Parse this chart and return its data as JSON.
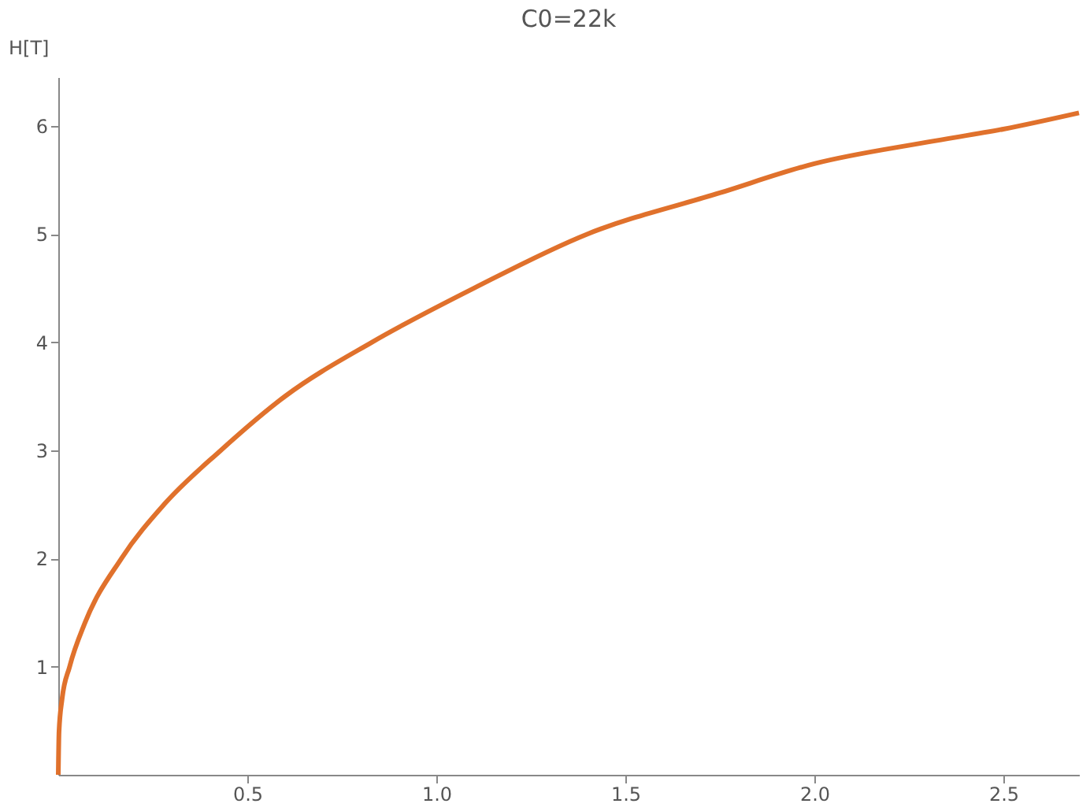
{
  "chart_data": {
    "type": "line",
    "title": "C0=22k",
    "ylabel": "H[T]",
    "x": [
      0,
      0.002,
      0.01,
      0.03,
      0.07,
      0.167,
      0.28,
      0.43,
      0.6,
      0.83,
      1.1,
      1.4,
      1.75,
      2.0,
      2.3,
      2.5,
      2.7
    ],
    "series": [
      {
        "color": "#e0712c",
        "values": [
          0,
          0.4,
          0.7,
          1.0,
          1.4,
          2.0,
          2.5,
          3.0,
          3.5,
          4.0,
          4.5,
          5.0,
          5.38,
          5.65,
          5.85,
          5.97,
          6.12
        ]
      }
    ],
    "xlim": [
      0,
      2.7
    ],
    "ylim": [
      0,
      6.45
    ],
    "xticks": [
      0.5,
      {
        "value": 1,
        "label": "1.0"
      },
      1.5,
      {
        "value": 2,
        "label": "2.0"
      },
      2.5
    ],
    "yticks": [
      1,
      2,
      3,
      4,
      5,
      6
    ],
    "grid": false,
    "marker": "none",
    "line_style": "solid"
  }
}
